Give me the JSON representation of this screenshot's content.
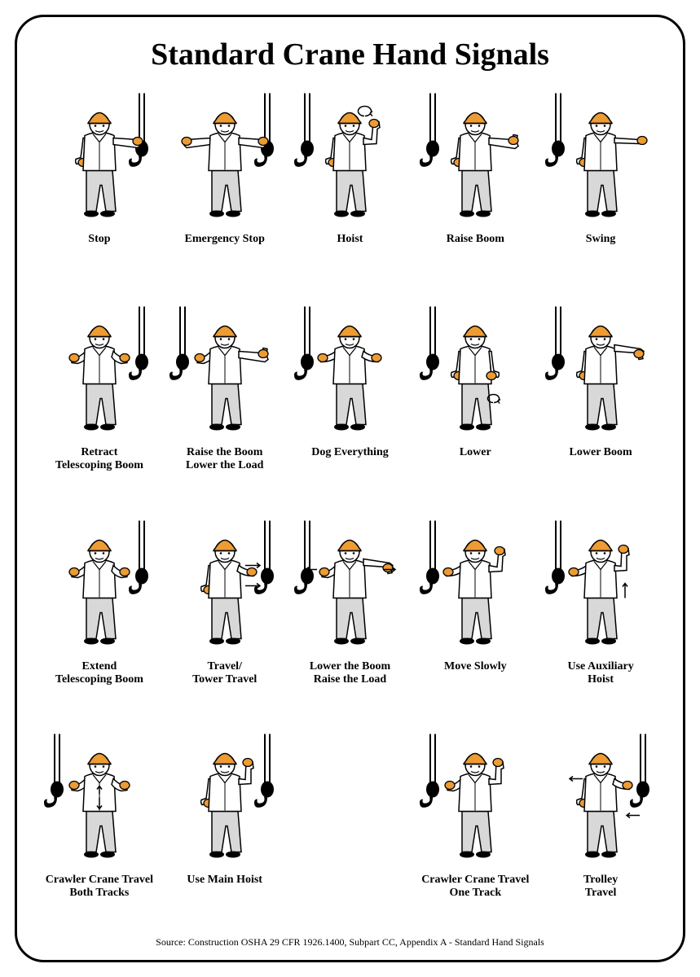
{
  "title": "Standard Crane Hand Signals",
  "source": "Source: Construction OSHA 29 CFR 1926.1400, Subpart CC, Appendix A - Standard Hand Signals",
  "colors": {
    "border": "#000000",
    "background": "#ffffff",
    "hardhat": "#ed9b33",
    "gloves": "#ed9b33",
    "skin": "#ffffff",
    "shirt": "#ffffff",
    "pants": "#d8d8d8",
    "outline": "#000000",
    "hook": "#000000"
  },
  "typography": {
    "title_fontsize": 38,
    "title_weight": "bold",
    "caption_fontsize": 14,
    "caption_weight": "bold",
    "source_fontsize": 12,
    "font_family": "Times New Roman"
  },
  "layout": {
    "columns": 5,
    "rows": 4,
    "border_radius": 36,
    "border_width": 3
  },
  "signals": [
    {
      "label": "Stop",
      "pose": "one-arm-out",
      "hook_side": "right"
    },
    {
      "label": "Emergency Stop",
      "pose": "both-arms-out",
      "hook_side": "right"
    },
    {
      "label": "Hoist",
      "pose": "forearm-up-finger-circle",
      "hook_side": "left"
    },
    {
      "label": "Raise Boom",
      "pose": "arm-out-thumb-up",
      "hook_side": "left"
    },
    {
      "label": "Swing",
      "pose": "arm-out-finger-point",
      "hook_side": "left"
    },
    {
      "label": "Retract\nTelescoping Boom",
      "pose": "both-fists-thumbs-in",
      "hook_side": "right"
    },
    {
      "label": "Raise the Boom\nLower the Load",
      "pose": "arm-out-thumb-up-other-flex",
      "hook_side": "left"
    },
    {
      "label": "Dog Everything",
      "pose": "hands-clasped-front",
      "hook_side": "left"
    },
    {
      "label": "Lower",
      "pose": "arm-down-finger-circle",
      "hook_side": "left"
    },
    {
      "label": "Lower Boom",
      "pose": "arm-out-thumb-down",
      "hook_side": "left"
    },
    {
      "label": "Extend\nTelescoping Boom",
      "pose": "both-fists-thumbs-out",
      "hook_side": "right"
    },
    {
      "label": "Travel/\nTower Travel",
      "pose": "arm-forward-palm-direction",
      "hook_side": "right",
      "arrows": true
    },
    {
      "label": "Lower the Boom\nRaise the Load",
      "pose": "arm-out-thumb-down-other-flex",
      "hook_side": "left",
      "arrows": true
    },
    {
      "label": "Move Slowly",
      "pose": "hand-over-other-signal",
      "hook_side": "left"
    },
    {
      "label": "Use Auxiliary\nHoist",
      "pose": "tap-elbow-forearm-up",
      "hook_side": "left",
      "arrows": true
    },
    {
      "label": "Crawler Crane Travel\nBoth Tracks",
      "pose": "both-fists-front-rotate",
      "hook_side": "left",
      "arrows": true
    },
    {
      "label": "Use Main Hoist",
      "pose": "fist-tap-head",
      "hook_side": "right"
    },
    {
      "label": "Crawler Crane Travel\nOne Track",
      "pose": "one-fist-up-one-fist-front",
      "hook_side": "left"
    },
    {
      "label": "Trolley\nTravel",
      "pose": "palm-up-thumb-direction",
      "hook_side": "right",
      "arrows": true
    }
  ]
}
